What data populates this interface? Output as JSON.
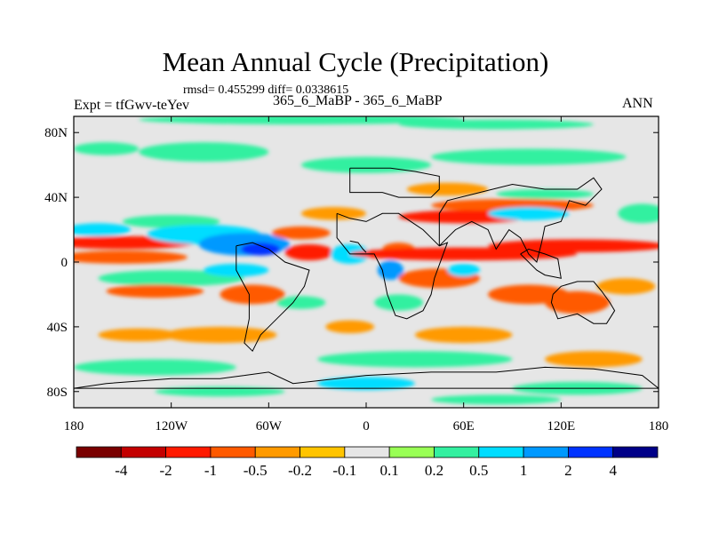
{
  "chart_data": {
    "type": "heatmap",
    "title": "Mean Annual Cycle (Precipitation)",
    "stats_line": "rmsd= 0.455299 diff= 0.0338615",
    "left_label": "Expt = tfGwv-teYev",
    "center_label": "365_6_MaBP - 365_6_MaBP",
    "right_label": "ANN",
    "x_ticks": [
      "180",
      "120W",
      "60W",
      "0",
      "60E",
      "120E",
      "180"
    ],
    "y_ticks": [
      "80N",
      "40N",
      "0",
      "40S",
      "80S"
    ],
    "xlim": [
      -180,
      180
    ],
    "ylim": [
      -90,
      90
    ],
    "colorbar": {
      "labels": [
        "-4",
        "-2",
        "-1",
        "-0.5",
        "-0.2",
        "-0.1",
        "0.1",
        "0.2",
        "0.5",
        "1",
        "2",
        "4"
      ],
      "colors": [
        "#7a0000",
        "#c30000",
        "#ff1a00",
        "#ff5a00",
        "#ff9a00",
        "#ffc400",
        "#e6e6e6",
        "#99ff55",
        "#33f0a0",
        "#00ddff",
        "#0099ff",
        "#0033ff",
        "#000088"
      ]
    },
    "anomalies": [
      {
        "lon": -150,
        "lat": 12,
        "rx": 45,
        "ry": 4,
        "level": "-1"
      },
      {
        "lon": -150,
        "lat": 3,
        "rx": 40,
        "ry": 4,
        "level": "-0.5"
      },
      {
        "lon": -165,
        "lat": 20,
        "rx": 20,
        "ry": 4,
        "level": "0.5"
      },
      {
        "lon": -120,
        "lat": 25,
        "rx": 30,
        "ry": 4,
        "level": "0.2"
      },
      {
        "lon": -100,
        "lat": 17,
        "rx": 35,
        "ry": 6,
        "level": "0.5"
      },
      {
        "lon": -75,
        "lat": 11,
        "rx": 28,
        "ry": 7,
        "level": "1"
      },
      {
        "lon": -65,
        "lat": 8,
        "rx": 12,
        "ry": 4,
        "level": "2"
      },
      {
        "lon": -35,
        "lat": 6,
        "rx": 15,
        "ry": 5,
        "level": "-1"
      },
      {
        "lon": -40,
        "lat": 18,
        "rx": 18,
        "ry": 4,
        "level": "-0.5"
      },
      {
        "lon": -10,
        "lat": 5,
        "rx": 12,
        "ry": 6,
        "level": "0.5"
      },
      {
        "lon": 15,
        "lat": -5,
        "rx": 8,
        "ry": 6,
        "level": "1"
      },
      {
        "lon": 20,
        "lat": 8,
        "rx": 10,
        "ry": 4,
        "level": "-0.5"
      },
      {
        "lon": 60,
        "lat": 5,
        "rx": 70,
        "ry": 4,
        "level": "-1"
      },
      {
        "lon": 130,
        "lat": 10,
        "rx": 55,
        "ry": 4,
        "level": "-1"
      },
      {
        "lon": 90,
        "lat": 35,
        "rx": 50,
        "ry": 4,
        "level": "-0.5"
      },
      {
        "lon": 60,
        "lat": 28,
        "rx": 40,
        "ry": 4,
        "level": "-1"
      },
      {
        "lon": 100,
        "lat": 30,
        "rx": 25,
        "ry": 4,
        "level": "0.5"
      },
      {
        "lon": 110,
        "lat": 42,
        "rx": 30,
        "ry": 3,
        "level": "0.2"
      },
      {
        "lon": 45,
        "lat": -10,
        "rx": 25,
        "ry": 6,
        "level": "-0.5"
      },
      {
        "lon": 60,
        "lat": -5,
        "rx": 10,
        "ry": 4,
        "level": "0.5"
      },
      {
        "lon": 100,
        "lat": -20,
        "rx": 25,
        "ry": 6,
        "level": "-0.5"
      },
      {
        "lon": 130,
        "lat": -25,
        "rx": 20,
        "ry": 7,
        "level": "-0.5"
      },
      {
        "lon": 160,
        "lat": -15,
        "rx": 18,
        "ry": 5,
        "level": "-0.2"
      },
      {
        "lon": -120,
        "lat": -10,
        "rx": 45,
        "ry": 5,
        "level": "0.2"
      },
      {
        "lon": -130,
        "lat": -18,
        "rx": 30,
        "ry": 4,
        "level": "-0.5"
      },
      {
        "lon": -70,
        "lat": -20,
        "rx": 20,
        "ry": 6,
        "level": "-0.5"
      },
      {
        "lon": -80,
        "lat": -5,
        "rx": 20,
        "ry": 4,
        "level": "0.5"
      },
      {
        "lon": -90,
        "lat": -45,
        "rx": 35,
        "ry": 5,
        "level": "-0.2"
      },
      {
        "lon": -140,
        "lat": -45,
        "rx": 25,
        "ry": 4,
        "level": "-0.2"
      },
      {
        "lon": 60,
        "lat": -45,
        "rx": 30,
        "ry": 5,
        "level": "-0.2"
      },
      {
        "lon": 140,
        "lat": -60,
        "rx": 30,
        "ry": 5,
        "level": "-0.2"
      },
      {
        "lon": -160,
        "lat": 70,
        "rx": 20,
        "ry": 4,
        "level": "0.2"
      },
      {
        "lon": -100,
        "lat": 68,
        "rx": 40,
        "ry": 6,
        "level": "0.2"
      },
      {
        "lon": 0,
        "lat": 60,
        "rx": 40,
        "ry": 5,
        "level": "0.2"
      },
      {
        "lon": 100,
        "lat": 65,
        "rx": 60,
        "ry": 5,
        "level": "0.2"
      },
      {
        "lon": -40,
        "lat": 88,
        "rx": 100,
        "ry": 3,
        "level": "0.2"
      },
      {
        "lon": 80,
        "lat": 85,
        "rx": 60,
        "ry": 3,
        "level": "0.2"
      },
      {
        "lon": -130,
        "lat": -65,
        "rx": 50,
        "ry": 5,
        "level": "0.2"
      },
      {
        "lon": 30,
        "lat": -60,
        "rx": 60,
        "ry": 5,
        "level": "0.2"
      },
      {
        "lon": 0,
        "lat": -75,
        "rx": 30,
        "ry": 4,
        "level": "0.5"
      },
      {
        "lon": 130,
        "lat": -78,
        "rx": 40,
        "ry": 4,
        "level": "0.2"
      },
      {
        "lon": -90,
        "lat": -80,
        "rx": 40,
        "ry": 3,
        "level": "0.2"
      },
      {
        "lon": 80,
        "lat": -85,
        "rx": 40,
        "ry": 3,
        "level": "0.2"
      },
      {
        "lon": 50,
        "lat": 45,
        "rx": 25,
        "ry": 4,
        "level": "-0.2"
      },
      {
        "lon": -20,
        "lat": 30,
        "rx": 20,
        "ry": 4,
        "level": "-0.2"
      },
      {
        "lon": 20,
        "lat": -25,
        "rx": 15,
        "ry": 5,
        "level": "0.2"
      },
      {
        "lon": -40,
        "lat": -25,
        "rx": 15,
        "ry": 4,
        "level": "0.2"
      },
      {
        "lon": -10,
        "lat": -40,
        "rx": 15,
        "ry": 4,
        "level": "-0.2"
      },
      {
        "lon": 170,
        "lat": 30,
        "rx": 15,
        "ry": 6,
        "level": "0.2"
      }
    ],
    "continent_outlines": [
      [
        [
          -10,
          58
        ],
        [
          5,
          58
        ],
        [
          15,
          58
        ],
        [
          30,
          56
        ],
        [
          45,
          53
        ],
        [
          45,
          45
        ],
        [
          40,
          40
        ],
        [
          30,
          40
        ],
        [
          20,
          40
        ],
        [
          10,
          43
        ],
        [
          0,
          43
        ],
        [
          -10,
          43
        ],
        [
          -10,
          58
        ]
      ],
      [
        [
          -18,
          30
        ],
        [
          -10,
          27
        ],
        [
          0,
          25
        ],
        [
          10,
          30
        ],
        [
          20,
          30
        ],
        [
          35,
          20
        ],
        [
          40,
          15
        ],
        [
          45,
          10
        ],
        [
          50,
          12
        ],
        [
          42,
          -10
        ],
        [
          40,
          -20
        ],
        [
          35,
          -30
        ],
        [
          25,
          -35
        ],
        [
          18,
          -33
        ],
        [
          13,
          -20
        ],
        [
          10,
          -5
        ],
        [
          5,
          5
        ],
        [
          -10,
          5
        ],
        [
          -18,
          15
        ],
        [
          -18,
          30
        ]
      ],
      [
        [
          45,
          10
        ],
        [
          55,
          20
        ],
        [
          65,
          25
        ],
        [
          75,
          20
        ],
        [
          80,
          8
        ],
        [
          88,
          20
        ],
        [
          95,
          15
        ],
        [
          100,
          5
        ],
        [
          105,
          0
        ],
        [
          108,
          12
        ],
        [
          110,
          22
        ],
        [
          120,
          25
        ],
        [
          125,
          38
        ],
        [
          135,
          35
        ],
        [
          140,
          40
        ],
        [
          145,
          45
        ],
        [
          140,
          52
        ],
        [
          130,
          45
        ],
        [
          110,
          45
        ],
        [
          90,
          48
        ],
        [
          70,
          43
        ],
        [
          50,
          38
        ],
        [
          45,
          30
        ],
        [
          45,
          10
        ]
      ],
      [
        [
          -80,
          10
        ],
        [
          -70,
          12
        ],
        [
          -60,
          8
        ],
        [
          -50,
          0
        ],
        [
          -35,
          -5
        ],
        [
          -38,
          -15
        ],
        [
          -45,
          -25
        ],
        [
          -55,
          -35
        ],
        [
          -65,
          -45
        ],
        [
          -70,
          -55
        ],
        [
          -75,
          -50
        ],
        [
          -72,
          -35
        ],
        [
          -72,
          -20
        ],
        [
          -80,
          -5
        ],
        [
          -80,
          10
        ]
      ],
      [
        [
          115,
          -20
        ],
        [
          120,
          -15
        ],
        [
          130,
          -12
        ],
        [
          140,
          -12
        ],
        [
          145,
          -18
        ],
        [
          150,
          -25
        ],
        [
          153,
          -30
        ],
        [
          148,
          -38
        ],
        [
          140,
          -38
        ],
        [
          130,
          -32
        ],
        [
          118,
          -35
        ],
        [
          114,
          -25
        ],
        [
          115,
          -20
        ]
      ],
      [
        [
          95,
          5
        ],
        [
          105,
          -5
        ],
        [
          110,
          -8
        ],
        [
          120,
          -10
        ],
        [
          118,
          2
        ],
        [
          110,
          5
        ],
        [
          100,
          8
        ],
        [
          95,
          5
        ]
      ],
      [
        [
          -75,
          -70
        ],
        [
          -60,
          -68
        ],
        [
          -45,
          -75
        ],
        [
          0,
          -70
        ],
        [
          40,
          -68
        ],
        [
          80,
          -68
        ],
        [
          110,
          -65
        ],
        [
          140,
          -66
        ],
        [
          170,
          -70
        ],
        [
          180,
          -78
        ],
        [
          -180,
          -78
        ],
        [
          -160,
          -75
        ],
        [
          -120,
          -72
        ],
        [
          -90,
          -72
        ],
        [
          -75,
          -70
        ]
      ],
      [
        [
          -10,
          13
        ],
        [
          -5,
          12
        ],
        [
          -2,
          8
        ],
        [
          0,
          6
        ]
      ]
    ]
  }
}
